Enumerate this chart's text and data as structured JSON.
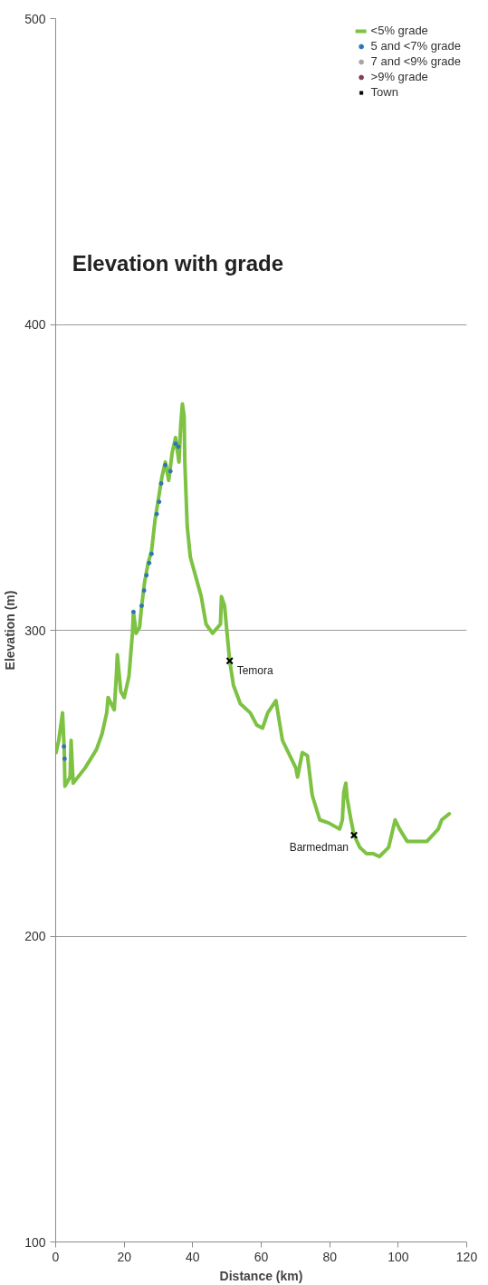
{
  "chart_data": {
    "type": "line",
    "title": "Elevation with grade",
    "xlabel": "Distance (km)",
    "ylabel": "Elevation (m)",
    "xlim": [
      0,
      120
    ],
    "xticks": [
      0,
      20,
      40,
      60,
      80,
      100,
      120
    ],
    "ylim": [
      100,
      500
    ],
    "yticks": [
      100,
      200,
      300,
      400,
      500
    ],
    "grid": "y",
    "legend": "right",
    "series": [
      {
        "name": "<5% grade",
        "color": "#7dc242",
        "x": [
          0.1,
          0.9,
          2.0,
          2.5,
          2.7,
          4.2,
          4.5,
          5.1,
          8.6,
          11.9,
          13.5,
          14.9,
          15.3,
          17.1,
          17.7,
          18.0,
          19.0,
          20.0,
          21.4,
          22.4,
          22.7,
          23.5,
          24.5,
          25.1,
          26,
          27,
          28,
          29,
          30,
          31,
          32,
          33,
          34,
          35,
          36,
          36.5,
          37,
          37.5,
          37.7,
          38.4,
          39.3,
          42.5,
          43.9,
          45.8,
          48.1,
          48.4,
          49.3,
          50.2,
          50.8,
          51.9,
          53.9,
          56.8,
          58.7,
          60.4,
          61.9,
          64.3,
          66.2,
          70.1,
          70.6,
          72.0,
          73.5,
          74.9,
          77.1,
          79.7,
          82.9,
          83.7,
          84.1,
          84.7,
          85.1,
          86.2,
          87.1,
          88.8,
          90.7,
          92.6,
          94.5,
          97.2,
          99.1,
          100.4,
          102.6,
          108.4,
          111.7,
          112.7,
          114.9
        ],
        "values": [
          260,
          264,
          273,
          261,
          249,
          252,
          264,
          250,
          255,
          261,
          266,
          273,
          278,
          274,
          285,
          292,
          280,
          278,
          285,
          299,
          306,
          299,
          301,
          308,
          316,
          322,
          326,
          336,
          343,
          350,
          355,
          349,
          358,
          363,
          355,
          367,
          374,
          370,
          355,
          334,
          324,
          311,
          302,
          299,
          302,
          311,
          308,
          297,
          290,
          282,
          276,
          273,
          269,
          268,
          273,
          277,
          264,
          255,
          252,
          260,
          259,
          246,
          238,
          237,
          235,
          238,
          247,
          250,
          245,
          238,
          233,
          229,
          227,
          227,
          226,
          229,
          238,
          235,
          231,
          231,
          235,
          238,
          240
        ]
      },
      {
        "name": "5 and <7% grade",
        "type": "scatter",
        "marker": "circle",
        "color": "#2e75b6",
        "x": [
          2.4,
          2.6,
          22.7,
          25.1,
          25.8,
          26.5,
          27.3,
          28,
          29.5,
          30.2,
          30.8,
          32,
          33.5,
          35,
          35.8
        ],
        "values": [
          262,
          258,
          306,
          308,
          313,
          318,
          322,
          325,
          338,
          342,
          348,
          354,
          352,
          361,
          360
        ]
      },
      {
        "name": "7 and <9% grade",
        "type": "scatter",
        "marker": "circle",
        "color": "#a5a5a5"
      },
      {
        "name": ">9% grade",
        "type": "scatter",
        "marker": "circle",
        "color": "#7f3f5f"
      },
      {
        "name": "Town",
        "type": "scatter",
        "marker": "cross",
        "color": "#000000",
        "x": [
          50.8,
          87.1
        ],
        "values": [
          290,
          233
        ]
      }
    ],
    "annotations": [
      {
        "text": "Temora",
        "x": 50.8,
        "y": 290
      },
      {
        "text": "Barmedman",
        "x": 87.1,
        "y": 233
      }
    ]
  }
}
